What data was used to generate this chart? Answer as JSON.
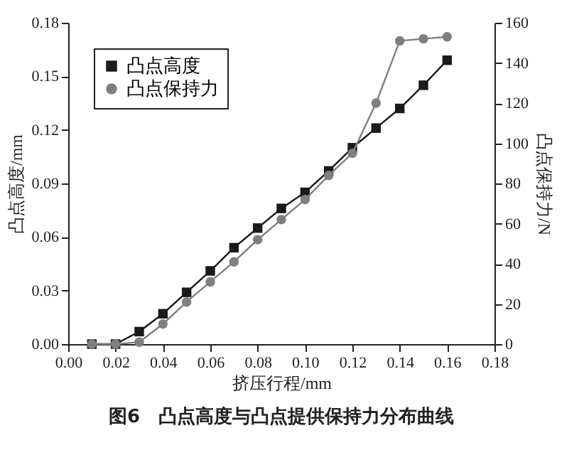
{
  "chart_data": {
    "type": "line",
    "title": "图6　凸点高度与凸点提供保持力分布曲线",
    "xlabel": "挤压行程/mm",
    "ylabel": "凸点高度/mm",
    "y2label": "凸点保持力/N",
    "x": [
      0.01,
      0.02,
      0.03,
      0.04,
      0.05,
      0.06,
      0.07,
      0.08,
      0.09,
      0.1,
      0.11,
      0.12,
      0.13,
      0.14,
      0.15,
      0.16
    ],
    "series": [
      {
        "name": "凸点高度",
        "color": "#1a1a1a",
        "marker": "square",
        "values": [
          0,
          0,
          0.007,
          0.017,
          0.029,
          0.041,
          0.054,
          0.065,
          0.076,
          0.085,
          0.097,
          0.11,
          0.121,
          0.132,
          0.145,
          0.159
        ]
      },
      {
        "name": "凸点保持力",
        "color": "#7f7f7f",
        "marker": "circle",
        "axis": "y2",
        "values": [
          0,
          0,
          1,
          10,
          21,
          31,
          41,
          52,
          62,
          72,
          84,
          95,
          120,
          151,
          152,
          153
        ]
      }
    ],
    "xlim": [
      0,
      0.18
    ],
    "xticks": [
      {
        "value": 0,
        "label": "0.00"
      },
      {
        "value": 0.02,
        "label": "0.02"
      },
      {
        "value": 0.04,
        "label": "0.04"
      },
      {
        "value": 0.06,
        "label": "0.06"
      },
      {
        "value": 0.08,
        "label": "0.08"
      },
      {
        "value": 0.1,
        "label": "0.10"
      },
      {
        "value": 0.12,
        "label": "0.12"
      },
      {
        "value": 0.14,
        "label": "0.14"
      },
      {
        "value": 0.16,
        "label": "0.16"
      },
      {
        "value": 0.18,
        "label": "0.18"
      }
    ],
    "ylim": [
      0,
      0.18
    ],
    "yticks": [
      {
        "value": 0,
        "label": "0.00"
      },
      {
        "value": 0.03,
        "label": "0.03"
      },
      {
        "value": 0.06,
        "label": "0.06"
      },
      {
        "value": 0.09,
        "label": "0.09"
      },
      {
        "value": 0.12,
        "label": "0.12"
      },
      {
        "value": 0.15,
        "label": "0.15"
      },
      {
        "value": 0.18,
        "label": "0.18"
      }
    ],
    "y2lim": [
      0,
      160
    ],
    "y2ticks": [
      0,
      20,
      40,
      60,
      80,
      100,
      120,
      140,
      160
    ],
    "legend": "top left",
    "grid": false
  }
}
